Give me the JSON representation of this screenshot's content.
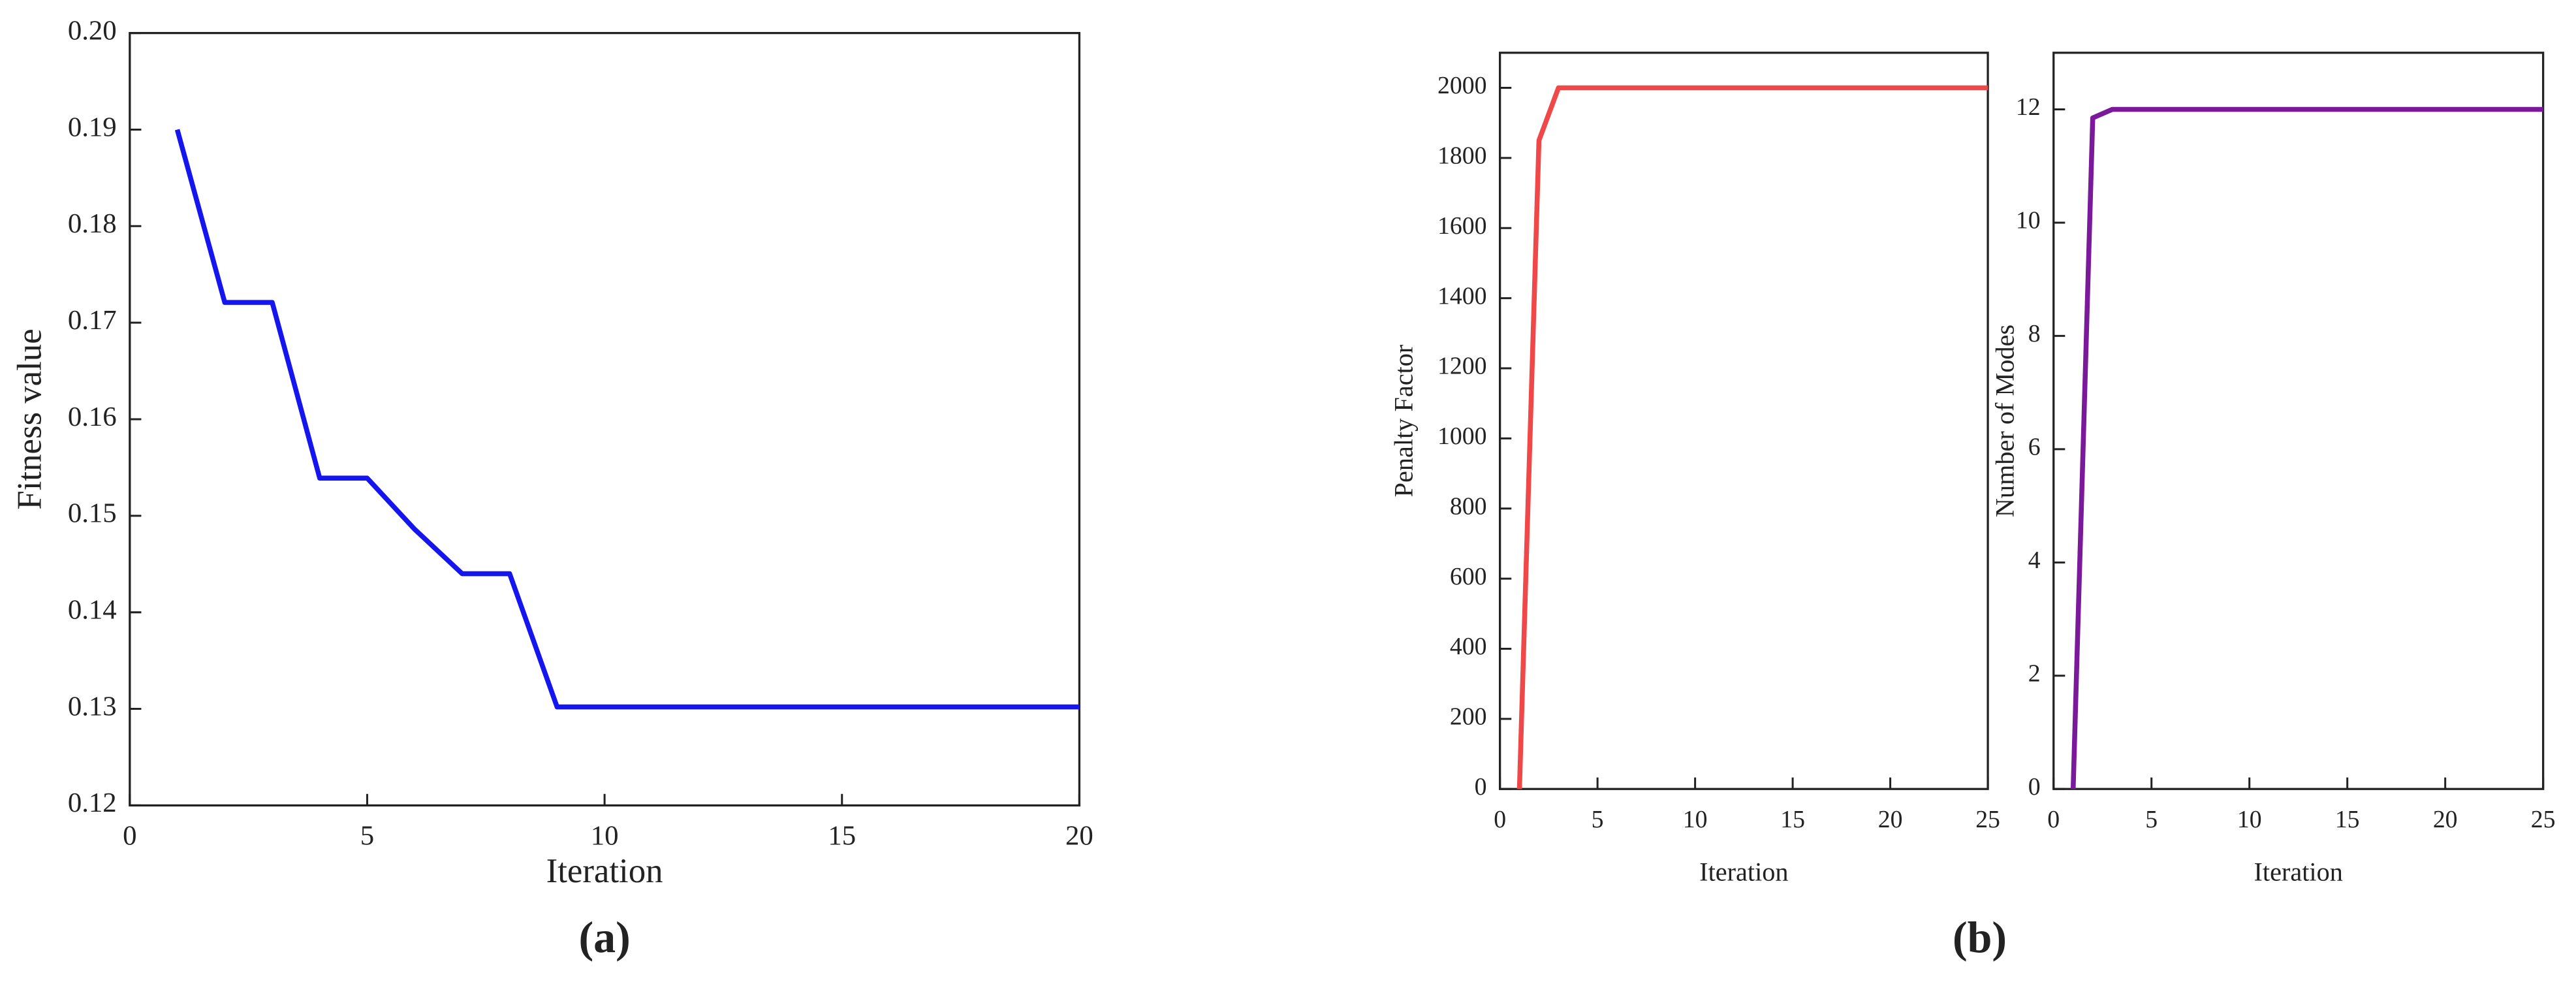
{
  "chart_data": [
    {
      "type": "line",
      "caption": "(a)",
      "xlabel": "Iteration",
      "ylabel": "Fitness value",
      "x": [
        1,
        2,
        3,
        4,
        5,
        6,
        7,
        8,
        9,
        10,
        11,
        12,
        13,
        14,
        15,
        16,
        17,
        18,
        19,
        20
      ],
      "series": [
        {
          "color": "#1515f0",
          "values": [
            0.19,
            0.1721,
            0.1721,
            0.1539,
            0.1539,
            0.1486,
            0.144,
            0.144,
            0.1302,
            0.1302,
            0.1302,
            0.1302,
            0.1302,
            0.1302,
            0.1302,
            0.1302,
            0.1302,
            0.1302,
            0.1302,
            0.1302
          ]
        }
      ],
      "xlim": [
        0,
        20
      ],
      "xticks": [
        0,
        5,
        10,
        15,
        20
      ],
      "ylim": [
        0.12,
        0.2
      ],
      "yticks": [
        0.12,
        0.13,
        0.14,
        0.15,
        0.16,
        0.17,
        0.18,
        0.19,
        {
          "value": 0.2,
          "label": "0.20"
        }
      ]
    },
    {
      "type": "line",
      "caption": "(b)",
      "xlabel": "Iteration",
      "ylabel": "Penalty Factor",
      "x": [
        1,
        2,
        3,
        4,
        5,
        6,
        7,
        8,
        9,
        10,
        11,
        12,
        13,
        14,
        15,
        16,
        17,
        18,
        19,
        20,
        21,
        22,
        23,
        24,
        25
      ],
      "series": [
        {
          "color": "#f04848",
          "values": [
            0,
            1850,
            2000,
            2000,
            2000,
            2000,
            2000,
            2000,
            2000,
            2000,
            2000,
            2000,
            2000,
            2000,
            2000,
            2000,
            2000,
            2000,
            2000,
            2000,
            2000,
            2000,
            2000,
            2000,
            2000
          ]
        }
      ],
      "xlim": [
        0,
        25
      ],
      "xticks": [
        0,
        5,
        10,
        15,
        20,
        25
      ],
      "ylim": [
        0,
        2100
      ],
      "yticks": [
        0,
        200,
        400,
        600,
        800,
        1000,
        1200,
        1400,
        1600,
        1800,
        2000
      ]
    },
    {
      "type": "line",
      "xlabel": "Iteration",
      "ylabel": "Number of Modes",
      "x": [
        1,
        2,
        3,
        4,
        5,
        6,
        7,
        8,
        9,
        10,
        11,
        12,
        13,
        14,
        15,
        16,
        17,
        18,
        19,
        20,
        21,
        22,
        23,
        24,
        25
      ],
      "series": [
        {
          "color": "#7a1a9a",
          "values": [
            0,
            11.85,
            12,
            12,
            12,
            12,
            12,
            12,
            12,
            12,
            12,
            12,
            12,
            12,
            12,
            12,
            12,
            12,
            12,
            12,
            12,
            12,
            12,
            12,
            12
          ]
        }
      ],
      "xlim": [
        0,
        25
      ],
      "xticks": [
        0,
        5,
        10,
        15,
        20,
        25
      ],
      "ylim": [
        0,
        13
      ],
      "yticks": [
        0,
        2,
        4,
        6,
        8,
        10,
        12
      ]
    }
  ]
}
